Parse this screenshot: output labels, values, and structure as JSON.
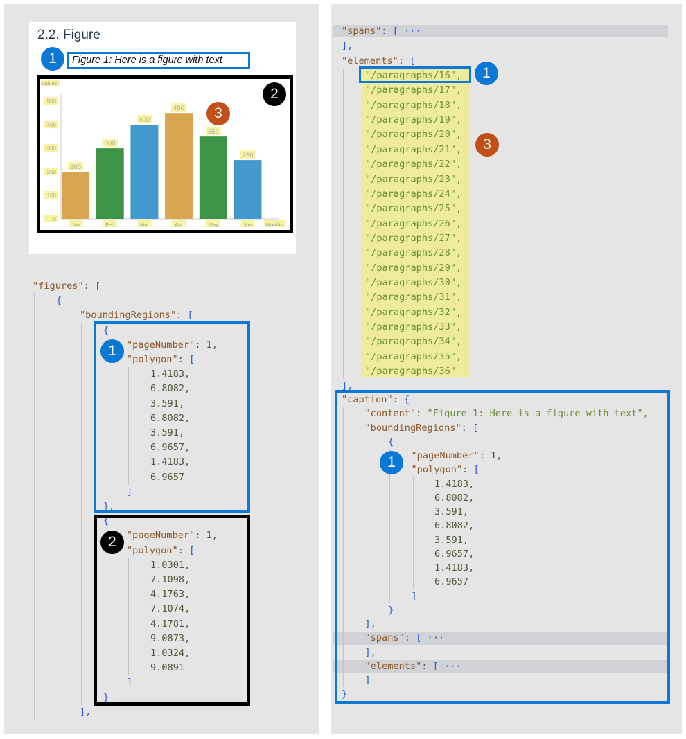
{
  "colors": {
    "blue_annotation": "#0a78d4",
    "black_annotation": "#000000",
    "orange_annotation": "#c24f17",
    "highlight": "#eeec9c"
  },
  "document_preview": {
    "heading": "2.2. Figure",
    "caption": "Figure 1: Here is a figure with text"
  },
  "chart_data": {
    "type": "bar",
    "title": "",
    "xlabel": "Months",
    "ylabel": "Values",
    "categories": [
      "Jan",
      "Feb",
      "Mar",
      "Apr",
      "May",
      "Jun"
    ],
    "values": [
      200,
      300,
      400,
      450,
      350,
      250
    ],
    "bar_colors": [
      "#d9a54e",
      "#3d9447",
      "#4499cc",
      "#d9a54e",
      "#3d9447",
      "#4499cc"
    ],
    "yticks": [
      0,
      100,
      200,
      300,
      400,
      500
    ],
    "ylim": [
      0,
      530
    ],
    "grid": false,
    "data_labels": true
  },
  "annotations": [
    "1",
    "2",
    "3"
  ],
  "left_code": [
    [
      0,
      "\"figures\": ["
    ],
    [
      1,
      "{"
    ],
    [
      2,
      "\"boundingRegions\": ["
    ],
    [
      3,
      "{"
    ],
    [
      4,
      "\"pageNumber\": 1,"
    ],
    [
      4,
      "\"polygon\": ["
    ],
    [
      5,
      "1.4183,"
    ],
    [
      5,
      "6.8082,"
    ],
    [
      5,
      "3.591,"
    ],
    [
      5,
      "6.8082,"
    ],
    [
      5,
      "3.591,"
    ],
    [
      5,
      "6.9657,"
    ],
    [
      5,
      "1.4183,"
    ],
    [
      5,
      "6.9657"
    ],
    [
      4,
      "]"
    ],
    [
      3,
      "},"
    ],
    [
      3,
      "{"
    ],
    [
      4,
      "\"pageNumber\": 1,"
    ],
    [
      4,
      "\"polygon\": ["
    ],
    [
      5,
      "1.0301,"
    ],
    [
      5,
      "7.1098,"
    ],
    [
      5,
      "4.1763,"
    ],
    [
      5,
      "7.1074,"
    ],
    [
      5,
      "4.1781,"
    ],
    [
      5,
      "9.0873,"
    ],
    [
      5,
      "1.0324,"
    ],
    [
      5,
      "9.0891"
    ],
    [
      4,
      "]"
    ],
    [
      3,
      "}"
    ],
    [
      2,
      "],"
    ]
  ],
  "right_code_top": [
    [
      0,
      "\"spans\": [ ···"
    ],
    [
      0,
      "],"
    ],
    [
      0,
      "\"elements\": ["
    ],
    [
      1,
      "\"/paragraphs/16\","
    ],
    [
      1,
      "\"/paragraphs/17\","
    ],
    [
      1,
      "\"/paragraphs/18\","
    ],
    [
      1,
      "\"/paragraphs/19\","
    ],
    [
      1,
      "\"/paragraphs/20\","
    ],
    [
      1,
      "\"/paragraphs/21\","
    ],
    [
      1,
      "\"/paragraphs/22\","
    ],
    [
      1,
      "\"/paragraphs/23\","
    ],
    [
      1,
      "\"/paragraphs/24\","
    ],
    [
      1,
      "\"/paragraphs/25\","
    ],
    [
      1,
      "\"/paragraphs/26\","
    ],
    [
      1,
      "\"/paragraphs/27\","
    ],
    [
      1,
      "\"/paragraphs/28\","
    ],
    [
      1,
      "\"/paragraphs/29\","
    ],
    [
      1,
      "\"/paragraphs/30\","
    ],
    [
      1,
      "\"/paragraphs/31\","
    ],
    [
      1,
      "\"/paragraphs/32\","
    ],
    [
      1,
      "\"/paragraphs/33\","
    ],
    [
      1,
      "\"/paragraphs/34\","
    ],
    [
      1,
      "\"/paragraphs/35\","
    ],
    [
      1,
      "\"/paragraphs/36\""
    ],
    [
      0,
      "],"
    ]
  ],
  "right_code_caption": [
    [
      0,
      "\"caption\": {"
    ],
    [
      1,
      "\"content\": \"Figure 1: Here is a figure with text\","
    ],
    [
      1,
      "\"boundingRegions\": ["
    ],
    [
      2,
      "{"
    ],
    [
      3,
      "\"pageNumber\": 1,"
    ],
    [
      3,
      "\"polygon\": ["
    ],
    [
      4,
      "1.4183,"
    ],
    [
      4,
      "6.8082,"
    ],
    [
      4,
      "3.591,"
    ],
    [
      4,
      "6.8082,"
    ],
    [
      4,
      "3.591,"
    ],
    [
      4,
      "6.9657,"
    ],
    [
      4,
      "1.4183,"
    ],
    [
      4,
      "6.9657"
    ],
    [
      3,
      "]"
    ],
    [
      2,
      "}"
    ],
    [
      1,
      "],"
    ],
    [
      1,
      "\"spans\": [ ···"
    ],
    [
      1,
      "],"
    ],
    [
      1,
      "\"elements\": [ ···"
    ],
    [
      1,
      "]"
    ],
    [
      0,
      "}"
    ]
  ]
}
